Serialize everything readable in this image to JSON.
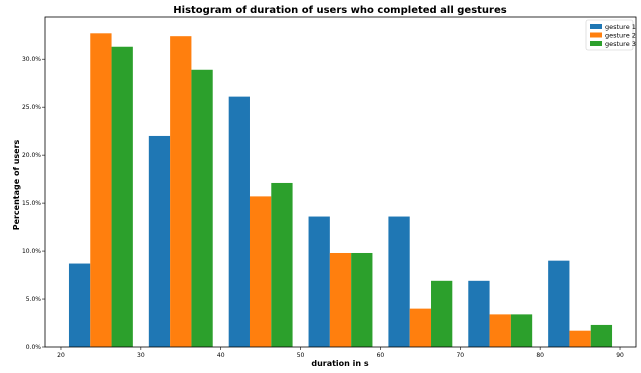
{
  "chart_data": {
    "type": "bar",
    "title": "Histogram of duration of users who completed all gestures",
    "xlabel": "duration in s",
    "ylabel": "Percentage of users",
    "bin_edges": [
      20,
      30,
      40,
      50,
      60,
      70,
      80,
      90
    ],
    "series": [
      {
        "name": "gesture 1",
        "color": "#1f77b4",
        "values": [
          8.7,
          22.0,
          26.1,
          13.6,
          13.6,
          6.9,
          9.0
        ]
      },
      {
        "name": "gesture 2",
        "color": "#ff7f0e",
        "values": [
          32.7,
          32.4,
          15.7,
          9.8,
          4.0,
          3.4,
          1.7
        ]
      },
      {
        "name": "gesture 3",
        "color": "#2ca02c",
        "values": [
          31.3,
          28.9,
          17.1,
          9.8,
          6.9,
          3.4,
          2.3
        ]
      }
    ],
    "xticks": [
      20,
      30,
      40,
      50,
      60,
      70,
      80,
      90
    ],
    "yticks": [
      0,
      5,
      10,
      15,
      20,
      25,
      30
    ],
    "ytick_labels": [
      "0.0%",
      "5.0%",
      "10.0%",
      "15.0%",
      "20.0%",
      "25.0%",
      "30.0%"
    ],
    "xlim": [
      18,
      92
    ],
    "ylim": [
      0,
      34.4
    ],
    "grid": false,
    "legend_position": "top-right"
  }
}
